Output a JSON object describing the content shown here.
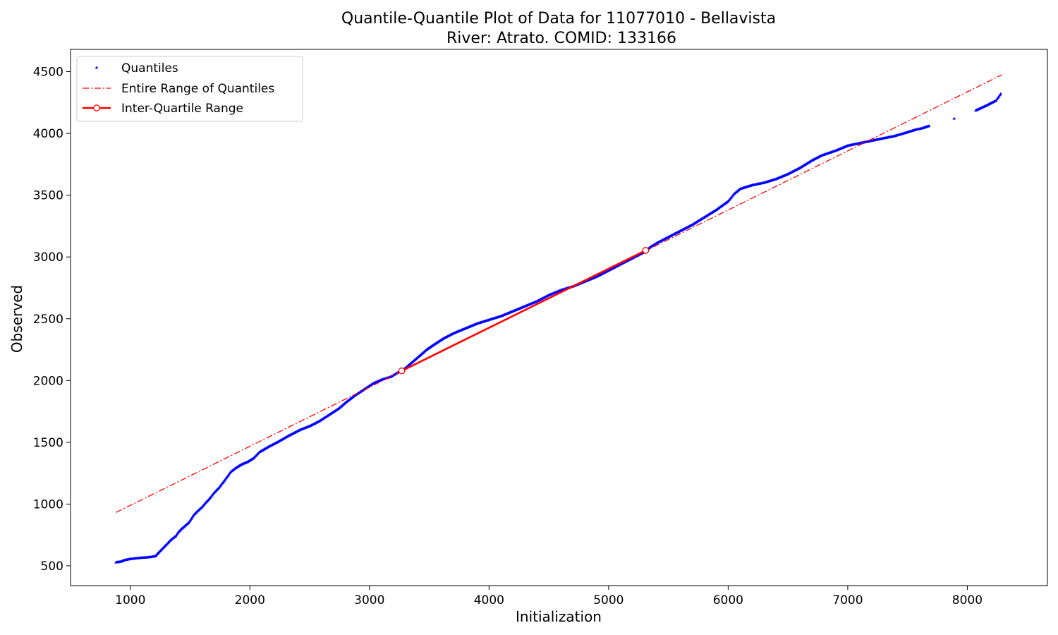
{
  "chart_data": {
    "type": "scatter",
    "title": "Quantile-Quantile Plot of Data for 11077010 - Bellavista",
    "subtitle": "River: Atrato. COMID: 133166",
    "xlabel": "Initialization",
    "ylabel": "Observed",
    "xlim": [
      500,
      8670
    ],
    "ylim": [
      340,
      4680
    ],
    "x_ticks": [
      1000,
      2000,
      3000,
      4000,
      5000,
      6000,
      7000,
      8000
    ],
    "y_ticks": [
      500,
      1000,
      1500,
      2000,
      2500,
      3000,
      3500,
      4000,
      4500
    ],
    "x_tick_labels": [
      "1000",
      "2000",
      "3000",
      "4000",
      "5000",
      "6000",
      "7000",
      "8000"
    ],
    "y_tick_labels": [
      "500",
      "1000",
      "1500",
      "2000",
      "2500",
      "3000",
      "3500",
      "4000",
      "4500"
    ],
    "grid": false,
    "legend_position": "upper-left",
    "series": [
      {
        "name": "Quantiles",
        "kind": "markers",
        "color": "#0000ff",
        "marker": "triangle-up",
        "points": [
          [
            880,
            527
          ],
          [
            900,
            530
          ],
          [
            920,
            533
          ],
          [
            950,
            545
          ],
          [
            1000,
            555
          ],
          [
            1050,
            560
          ],
          [
            1100,
            565
          ],
          [
            1150,
            568
          ],
          [
            1180,
            572
          ],
          [
            1210,
            578
          ],
          [
            1230,
            600
          ],
          [
            1260,
            630
          ],
          [
            1300,
            670
          ],
          [
            1340,
            710
          ],
          [
            1380,
            740
          ],
          [
            1400,
            770
          ],
          [
            1430,
            800
          ],
          [
            1460,
            825
          ],
          [
            1490,
            850
          ],
          [
            1510,
            880
          ],
          [
            1530,
            910
          ],
          [
            1560,
            940
          ],
          [
            1600,
            975
          ],
          [
            1630,
            1010
          ],
          [
            1660,
            1040
          ],
          [
            1700,
            1090
          ],
          [
            1740,
            1130
          ],
          [
            1780,
            1180
          ],
          [
            1810,
            1220
          ],
          [
            1840,
            1260
          ],
          [
            1880,
            1290
          ],
          [
            1930,
            1320
          ],
          [
            1980,
            1340
          ],
          [
            2030,
            1370
          ],
          [
            2080,
            1420
          ],
          [
            2150,
            1460
          ],
          [
            2230,
            1500
          ],
          [
            2320,
            1550
          ],
          [
            2420,
            1600
          ],
          [
            2500,
            1630
          ],
          [
            2580,
            1670
          ],
          [
            2660,
            1720
          ],
          [
            2740,
            1770
          ],
          [
            2800,
            1820
          ],
          [
            2880,
            1880
          ],
          [
            2960,
            1930
          ],
          [
            3030,
            1975
          ],
          [
            3100,
            2005
          ],
          [
            3180,
            2030
          ],
          [
            3230,
            2060
          ],
          [
            3270,
            2080
          ],
          [
            3300,
            2100
          ],
          [
            3360,
            2150
          ],
          [
            3420,
            2200
          ],
          [
            3480,
            2250
          ],
          [
            3540,
            2290
          ],
          [
            3620,
            2340
          ],
          [
            3700,
            2380
          ],
          [
            3800,
            2420
          ],
          [
            3900,
            2460
          ],
          [
            4000,
            2490
          ],
          [
            4100,
            2520
          ],
          [
            4200,
            2560
          ],
          [
            4300,
            2600
          ],
          [
            4400,
            2640
          ],
          [
            4500,
            2690
          ],
          [
            4600,
            2730
          ],
          [
            4700,
            2760
          ],
          [
            4800,
            2800
          ],
          [
            4900,
            2840
          ],
          [
            5000,
            2890
          ],
          [
            5100,
            2940
          ],
          [
            5200,
            2990
          ],
          [
            5300,
            3040
          ],
          [
            5350,
            3080
          ],
          [
            5400,
            3110
          ],
          [
            5500,
            3160
          ],
          [
            5600,
            3210
          ],
          [
            5700,
            3260
          ],
          [
            5800,
            3320
          ],
          [
            5900,
            3380
          ],
          [
            6000,
            3450
          ],
          [
            6050,
            3510
          ],
          [
            6100,
            3550
          ],
          [
            6200,
            3580
          ],
          [
            6300,
            3600
          ],
          [
            6400,
            3630
          ],
          [
            6500,
            3670
          ],
          [
            6600,
            3720
          ],
          [
            6700,
            3780
          ],
          [
            6780,
            3820
          ],
          [
            6900,
            3860
          ],
          [
            7000,
            3900
          ],
          [
            7100,
            3920
          ],
          [
            7200,
            3940
          ],
          [
            7300,
            3960
          ],
          [
            7380,
            3975
          ],
          [
            7470,
            4000
          ],
          [
            7570,
            4030
          ],
          [
            7620,
            4040
          ],
          [
            7680,
            4060
          ],
          [
            7890,
            4120
          ],
          [
            8070,
            4185
          ],
          [
            8160,
            4225
          ],
          [
            8240,
            4265
          ],
          [
            8280,
            4320
          ]
        ]
      },
      {
        "name": "Entire Range of Quantiles",
        "kind": "dashdot-line",
        "color": "#ff0000",
        "points": [
          [
            880,
            932
          ],
          [
            8290,
            4475
          ]
        ]
      },
      {
        "name": "Inter-Quartile Range",
        "kind": "solid-line-with-endpoints",
        "color": "#ff0000",
        "points": [
          [
            3270,
            2078
          ],
          [
            5310,
            3053
          ]
        ]
      }
    ]
  }
}
